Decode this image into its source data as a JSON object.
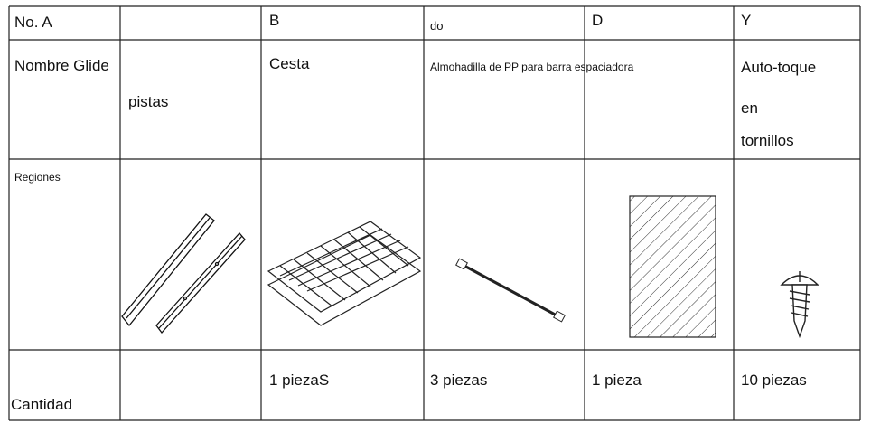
{
  "header": [
    "No. A",
    "B",
    "do",
    "D",
    "Y"
  ],
  "names": {
    "label": "Nombre Glide",
    "rails": "pistas",
    "basket": "Cesta",
    "pad": "Almohadilla de PP para barra espaciadora",
    "screw": [
      "Auto-toque",
      "en",
      "tornillos"
    ]
  },
  "images_label": "Regiones",
  "quantity": {
    "label": "Cantidad",
    "values": [
      "1 piezaS",
      "3 piezas",
      "1 pieza",
      "10 piezas"
    ]
  }
}
